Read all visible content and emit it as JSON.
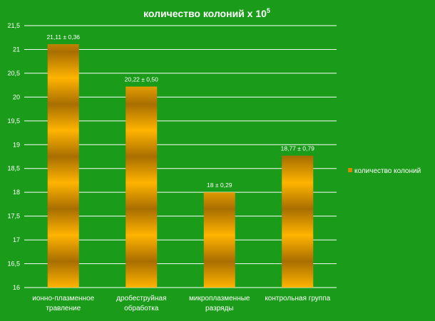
{
  "chart_data": {
    "type": "bar",
    "title": "количество колоний х 10",
    "title_superscript": "5",
    "categories": [
      [
        "ионно-плазменное",
        "травление"
      ],
      [
        "дробеструйная",
        "обработка"
      ],
      [
        "микроплазменные",
        "разряды"
      ],
      [
        "контрольная группа"
      ]
    ],
    "series": [
      {
        "name": "количество колоний",
        "values": [
          21.11,
          20.22,
          18,
          18.77
        ],
        "labels": [
          "21,11 ± 0,36",
          "20,22 ± 0,50",
          "18 ± 0,29",
          "18,77 ± 0,79"
        ]
      }
    ],
    "ylim": [
      16,
      21.5
    ],
    "yticks": [
      "16",
      "16,5",
      "17",
      "17,5",
      "18",
      "18,5",
      "19",
      "19,5",
      "20",
      "20,5",
      "21",
      "21,5"
    ],
    "grid": true,
    "legend_position": "right",
    "colors": {
      "background": "#1a9c1a",
      "bar_light": "#ffb400",
      "bar_dark": "#a86e00",
      "grid": "#ffffff",
      "text": "#ffffff"
    }
  }
}
